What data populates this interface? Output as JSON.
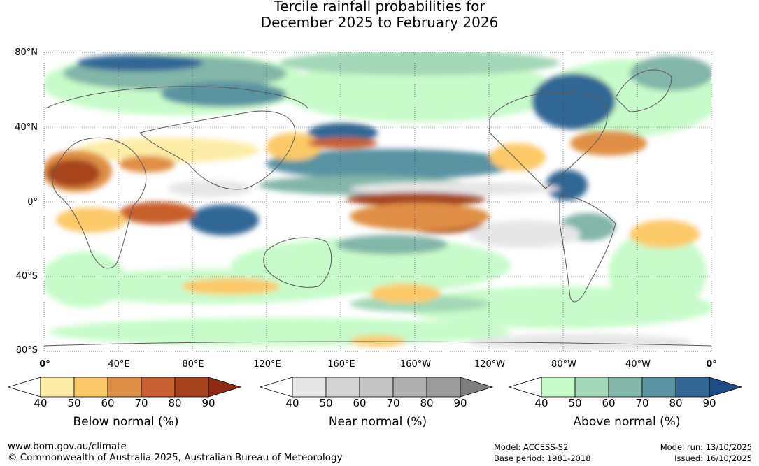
{
  "title": {
    "line1": "Tercile rainfall probabilities for",
    "line2": "December 2025 to February 2026"
  },
  "map": {
    "lat_labels": [
      "80°N",
      "40°N",
      "0°",
      "40°S",
      "80°S"
    ],
    "lon_labels": [
      "0°",
      "40°E",
      "80°E",
      "120°E",
      "160°E",
      "160°W",
      "120°W",
      "80°W",
      "40°W",
      "0°"
    ]
  },
  "legends": [
    {
      "title": "Below normal (%)",
      "ticks": [
        "40",
        "50",
        "60",
        "70",
        "80",
        "90"
      ],
      "colors": [
        "#ffffff",
        "#fdeca6",
        "#fcc969",
        "#df8f44",
        "#c8612f",
        "#a7441f",
        "#8e2a12"
      ]
    },
    {
      "title": "Near normal (%)",
      "ticks": [
        "40",
        "50",
        "60",
        "70",
        "80",
        "90"
      ],
      "colors": [
        "#ffffff",
        "#e6e6e6",
        "#d4d4d4",
        "#c4c4c4",
        "#b0b0b0",
        "#9c9c9c",
        "#7e7e7e"
      ]
    },
    {
      "title": "Above normal (%)",
      "ticks": [
        "40",
        "50",
        "60",
        "70",
        "80",
        "90"
      ],
      "colors": [
        "#ffffff",
        "#c7fbc9",
        "#a3d8b8",
        "#82b6a8",
        "#5a93a0",
        "#336895",
        "#1d4b84"
      ]
    }
  ],
  "footer": {
    "url": "www.bom.gov.au/climate",
    "copyright": "© Commonwealth of Australia 2025, Australian Bureau of Meteorology",
    "model": "Model: ACCESS-S2",
    "base_period": "Base period: 1981-2018",
    "model_run": "Model run: 13/10/2025",
    "issued": "Issued: 16/10/2025"
  }
}
